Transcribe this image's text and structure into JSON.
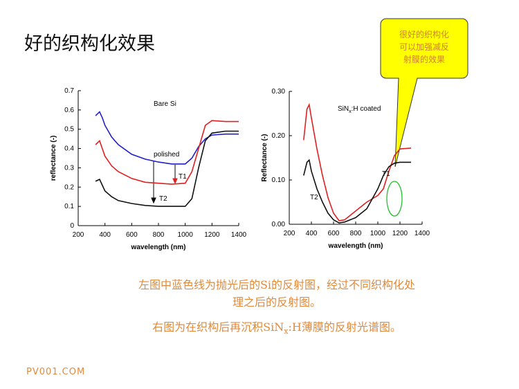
{
  "slide": {
    "title": "好的织构化效果",
    "callout": [
      "很好的织构化",
      "可以加强减反",
      "射膜的效果"
    ],
    "caption1": [
      "左图中蓝色线为抛光后的Si的反射图，经过不同织构化处",
      "理之后的反射图。"
    ],
    "caption2": [
      "右图为在织构后再沉积SiN",
      "x",
      ":H薄膜的反射光谱图。"
    ],
    "footer": "PV001.COM"
  },
  "chart_data": [
    {
      "type": "line",
      "annotation": "Bare Si",
      "x_label": "wavelength (nm)",
      "y_label": "reflectance (-)",
      "x": [
        330,
        360,
        380,
        400,
        450,
        500,
        600,
        700,
        800,
        900,
        1000,
        1050,
        1100,
        1150,
        1200,
        1300,
        1400
      ],
      "series": [
        {
          "name": "polished",
          "color": "#1f1fc8",
          "values": [
            0.57,
            0.59,
            0.56,
            0.52,
            0.46,
            0.42,
            0.37,
            0.345,
            0.33,
            0.32,
            0.32,
            0.35,
            0.41,
            0.45,
            0.47,
            0.475,
            0.475
          ]
        },
        {
          "name": "T1",
          "color": "#e02020",
          "values": [
            0.42,
            0.44,
            0.4,
            0.36,
            0.31,
            0.28,
            0.245,
            0.225,
            0.22,
            0.215,
            0.22,
            0.28,
            0.4,
            0.52,
            0.545,
            0.54,
            0.54
          ]
        },
        {
          "name": "T2",
          "color": "#111111",
          "values": [
            0.23,
            0.24,
            0.21,
            0.18,
            0.15,
            0.13,
            0.115,
            0.105,
            0.1,
            0.1,
            0.1,
            0.14,
            0.3,
            0.44,
            0.48,
            0.49,
            0.49
          ]
        }
      ],
      "xlim": [
        200,
        1400
      ],
      "xticks": [
        200,
        400,
        600,
        800,
        1000,
        1200,
        1400
      ],
      "ylim": [
        0,
        0.7
      ],
      "yticks": [
        0,
        0.1,
        0.2,
        0.3,
        0.4,
        0.5,
        0.6,
        0.7
      ]
    },
    {
      "type": "line",
      "annotation": [
        "SiN",
        "x",
        ":H coated"
      ],
      "x_label": "wavelength (nm)",
      "y_label": "Reflectance (-)",
      "x": [
        330,
        360,
        380,
        400,
        450,
        500,
        550,
        600,
        650,
        700,
        800,
        900,
        1000,
        1050,
        1100,
        1150,
        1200,
        1300
      ],
      "series": [
        {
          "name": "T1",
          "color": "#e02020",
          "values": [
            0.19,
            0.26,
            0.27,
            0.24,
            0.17,
            0.11,
            0.06,
            0.025,
            0.008,
            0.01,
            0.03,
            0.05,
            0.065,
            0.08,
            0.12,
            0.155,
            0.17,
            0.172
          ]
        },
        {
          "name": "T2",
          "color": "#111111",
          "values": [
            0.11,
            0.14,
            0.145,
            0.12,
            0.08,
            0.05,
            0.025,
            0.01,
            0.003,
            0.005,
            0.015,
            0.035,
            0.08,
            0.11,
            0.13,
            0.138,
            0.14,
            0.14
          ]
        }
      ],
      "xlim": [
        200,
        1400
      ],
      "xticks": [
        200,
        400,
        600,
        800,
        1000,
        1200,
        1400
      ],
      "ylim": [
        0,
        0.3
      ],
      "yticks": [
        {
          "value": 0,
          "label": "0.00"
        },
        {
          "value": 0.1,
          "label": "0.10"
        },
        {
          "value": 0.2,
          "label": "0.20"
        },
        {
          "value": 0.3,
          "label": "0.30"
        }
      ]
    }
  ]
}
